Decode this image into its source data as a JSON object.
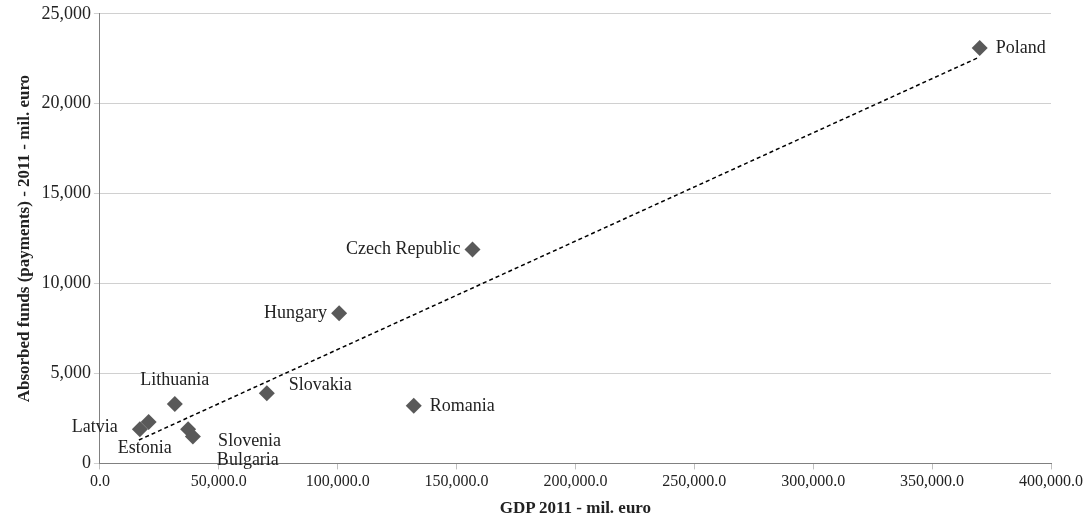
{
  "chart_data": {
    "type": "scatter",
    "xlabel": "GDP 2011 - mil. euro",
    "ylabel": "Absorbed funds (payments) - 2011 - mil. euro",
    "xlim": [
      0,
      400000
    ],
    "xticks": [
      {
        "value": 0,
        "label": "0.0"
      },
      {
        "value": 50000,
        "label": "50,000.0"
      },
      {
        "value": 100000,
        "label": "100,000.0"
      },
      {
        "value": 150000,
        "label": "150,000.0"
      },
      {
        "value": 200000,
        "label": "200,000.0"
      },
      {
        "value": 250000,
        "label": "250,000.0"
      },
      {
        "value": 300000,
        "label": "300,000.0"
      },
      {
        "value": 350000,
        "label": "350,000.0"
      },
      {
        "value": 400000,
        "label": "400,000.0"
      }
    ],
    "ylim": [
      0,
      25000
    ],
    "yticks": [
      0,
      {
        "value": 5000,
        "label": "5,000"
      },
      {
        "value": 10000,
        "label": "10,000"
      },
      {
        "value": 15000,
        "label": "15,000"
      },
      {
        "value": 20000,
        "label": "20,000"
      },
      {
        "value": 25000,
        "label": "25,000"
      }
    ],
    "grid": "y",
    "legend": false,
    "marker": "diamond",
    "series": [
      {
        "type": "scatter",
        "color": "#595959",
        "x": [
          370000,
          156700,
          100600,
          70200,
          132000,
          31500,
          16800,
          20500,
          37100,
          39100
        ],
        "values": [
          23100,
          11900,
          8350,
          3900,
          3200,
          3300,
          1900,
          2300,
          1900,
          1500
        ]
      },
      {
        "type": "line",
        "color": "#000000",
        "marker": "none",
        "line_style": "dashed",
        "x": [
          16400,
          370000
        ],
        "values": [
          1300,
          22600
        ]
      }
    ],
    "annotations": [
      {
        "text": "Poland",
        "x": 370000,
        "y": 23100
      },
      {
        "text": "Czech Republic",
        "x": 156700,
        "y": 11900
      },
      {
        "text": "Hungary",
        "x": 100600,
        "y": 8350
      },
      {
        "text": "Slovakia",
        "x": 70200,
        "y": 3900
      },
      {
        "text": "Romania",
        "x": 132000,
        "y": 3200
      },
      {
        "text": "Lithuania",
        "x": 31500,
        "y": 3300
      },
      {
        "text": "Latvia",
        "x": 16800,
        "y": 1900
      },
      {
        "text": "Estonia",
        "x": 20500,
        "y": 2300
      },
      {
        "text": "Slovenia",
        "x": 37100,
        "y": 1900
      },
      {
        "text": "Bulgaria",
        "x": 39100,
        "y": 1500
      }
    ]
  }
}
